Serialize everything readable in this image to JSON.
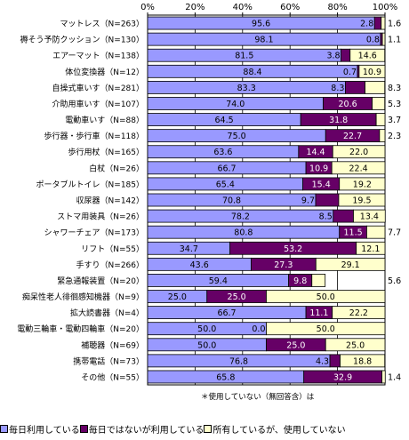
{
  "chart_data": {
    "type": "bar",
    "orientation": "horizontal",
    "stacked": true,
    "xlim": [
      0,
      100
    ],
    "x_ticks": [
      "0%",
      "20%",
      "40%",
      "60%",
      "80%",
      "100%"
    ],
    "grid": true,
    "categories": [
      "マットレス（N=263）",
      "褥そう予防クッション（N=130）",
      "エアーマット（N=138）",
      "体位変換器（N=12）",
      "自操式車いす（N=281）",
      "介助用車いす（N=107）",
      "電動車いす（N=88）",
      "歩行器・歩行車（N=118）",
      "歩行用杖（N=165）",
      "白杖（N=26）",
      "ポータブルトイレ（N=185）",
      "収尿器（N=142）",
      "ストマ用装具（N=26）",
      "シャワーチェア（N=173）",
      "リフト（N=55）",
      "手すり（N=266）",
      "緊急通報装置（N=20）",
      "痴呆性老人徘徊感知機器（N=9）",
      "拡大読書器（N=4）",
      "電動三輪車・電動四輪車（N=20）",
      "補聴器（N=69）",
      "携帯電話（N=73）",
      "その他（N=55）"
    ],
    "series": [
      {
        "name": "毎日利用している",
        "color": "#9999ff",
        "values": [
          95.6,
          98.1,
          81.5,
          88.4,
          83.3,
          74.0,
          64.5,
          75.0,
          63.6,
          66.7,
          65.4,
          70.8,
          78.2,
          80.8,
          34.7,
          43.6,
          59.4,
          25.0,
          66.7,
          50.0,
          50.0,
          76.8,
          65.8
        ]
      },
      {
        "name": "毎日ではないが利用している",
        "color": "#660066",
        "values": [
          2.8,
          0.8,
          3.8,
          0.7,
          8.3,
          20.6,
          31.8,
          22.7,
          14.4,
          10.9,
          15.4,
          9.7,
          8.5,
          11.5,
          53.2,
          27.3,
          9.8,
          25.0,
          11.1,
          0.0,
          25.0,
          4.3,
          32.9
        ]
      },
      {
        "name": "所有しているが、使用していない",
        "color": "#ffffcc",
        "values": [
          1.6,
          1.1,
          14.6,
          10.9,
          8.3,
          5.3,
          3.7,
          2.3,
          22.0,
          22.4,
          19.2,
          19.5,
          13.4,
          7.7,
          12.1,
          29.1,
          5.6,
          50.0,
          22.2,
          50.0,
          25.0,
          18.8,
          1.4
        ]
      }
    ],
    "note": "＊使用していない（無回答含）は",
    "legend_position": "bottom"
  }
}
